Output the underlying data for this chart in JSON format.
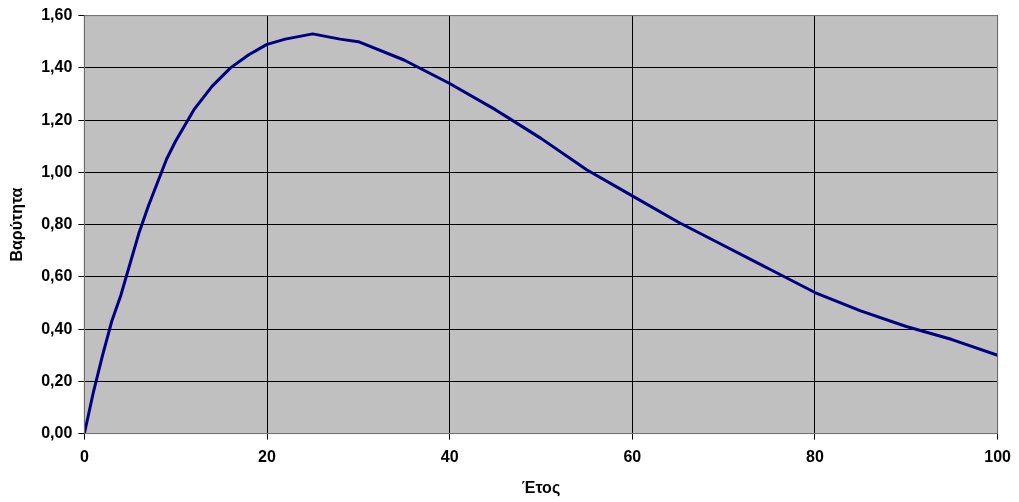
{
  "chart_data": {
    "type": "line",
    "xlabel": "Έτος",
    "ylabel": "Βαρύτητα",
    "x": [
      0,
      0.5,
      1,
      2,
      3,
      4,
      5,
      6,
      7,
      8,
      9,
      10,
      12,
      14,
      16,
      18,
      20,
      22,
      25,
      28,
      30,
      35,
      40,
      45,
      50,
      55,
      60,
      65,
      70,
      75,
      80,
      85,
      90,
      95,
      100
    ],
    "series": [
      {
        "color": "#000080",
        "values": [
          0,
          0.08,
          0.16,
          0.3,
          0.43,
          0.53,
          0.65,
          0.77,
          0.87,
          0.96,
          1.05,
          1.12,
          1.24,
          1.33,
          1.4,
          1.45,
          1.49,
          1.51,
          1.53,
          1.51,
          1.5,
          1.43,
          1.34,
          1.24,
          1.13,
          1.01,
          0.91,
          0.81,
          0.72,
          0.63,
          0.54,
          0.47,
          0.41,
          0.36,
          0.3
        ]
      }
    ],
    "xlim": [
      0,
      100
    ],
    "xticks": [
      0,
      20,
      40,
      60,
      80,
      100
    ],
    "ylim": [
      0,
      1.6
    ],
    "yticks": [
      {
        "value": 0,
        "label": "0,00"
      },
      {
        "value": 0.2,
        "label": "0,20"
      },
      {
        "value": 0.4,
        "label": "0,40"
      },
      {
        "value": 0.6,
        "label": "0,60"
      },
      {
        "value": 0.8,
        "label": "0,80"
      },
      {
        "value": 1,
        "label": "1,00"
      },
      {
        "value": 1.2,
        "label": "1,20"
      },
      {
        "value": 1.4,
        "label": "1,40"
      },
      {
        "value": 1.6,
        "label": "1,60"
      }
    ],
    "grid": true,
    "legend": false,
    "marker": "none",
    "line_style": "solid"
  }
}
